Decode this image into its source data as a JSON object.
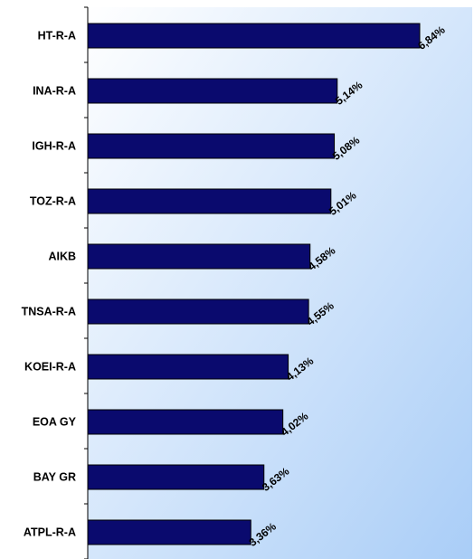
{
  "chart_data": {
    "type": "bar",
    "orientation": "horizontal",
    "categories": [
      "HT-R-A",
      "INA-R-A",
      "IGH-R-A",
      "TOZ-R-A",
      "AIKB",
      "TNSA-R-A",
      "KOEI-R-A",
      "EOA GY",
      "BAY GR",
      "ATPL-R-A"
    ],
    "values": [
      6.84,
      5.14,
      5.08,
      5.01,
      4.58,
      4.55,
      4.13,
      4.02,
      3.63,
      3.36
    ],
    "value_labels": [
      "6,84%",
      "5,14%",
      "5,08%",
      "5,01%",
      "4,58%",
      "4,55%",
      "4,13%",
      "4,02%",
      "3,63%",
      "3,36%"
    ],
    "unit": "%",
    "title": "",
    "xlabel": "",
    "ylabel": "",
    "xlim": [
      0,
      7.5
    ],
    "grid": false,
    "legend": "none",
    "bar_color": "#0a0a6e",
    "bar_border_color": "#000000",
    "background_gradient": [
      "#ffffff",
      "#a9cdf7"
    ]
  }
}
